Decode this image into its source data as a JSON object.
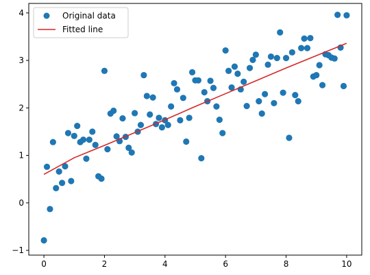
{
  "chart_data": {
    "type": "scatter",
    "xlim": [
      -0.5,
      10.5
    ],
    "ylim": [
      -1.1,
      4.2
    ],
    "x_ticks": [
      0,
      2,
      4,
      6,
      8,
      10
    ],
    "y_ticks": [
      -1,
      0,
      1,
      2,
      3,
      4
    ],
    "grid": false,
    "legend": {
      "placement": "top-left",
      "entries": [
        "Original data",
        "Fitted line"
      ]
    },
    "colors": {
      "points": "#1f77b4",
      "line": "#d62728",
      "axes": "#000000"
    },
    "series": [
      {
        "name": "Original data",
        "type": "scatter",
        "x": [
          0.0,
          0.1,
          0.2,
          0.3,
          0.4,
          0.5,
          0.6,
          0.7,
          0.8,
          0.9,
          1.0,
          1.1,
          1.2,
          1.3,
          1.4,
          1.5,
          1.6,
          1.7,
          1.8,
          1.9,
          2.0,
          2.1,
          2.2,
          2.3,
          2.4,
          2.5,
          2.6,
          2.7,
          2.8,
          2.9,
          3.0,
          3.1,
          3.2,
          3.3,
          3.4,
          3.5,
          3.6,
          3.7,
          3.8,
          3.9,
          4.0,
          4.1,
          4.2,
          4.3,
          4.4,
          4.5,
          4.6,
          4.7,
          4.8,
          4.9,
          5.0,
          5.1,
          5.2,
          5.3,
          5.4,
          5.5,
          5.6,
          5.7,
          5.8,
          5.9,
          6.0,
          6.1,
          6.2,
          6.3,
          6.4,
          6.5,
          6.6,
          6.7,
          6.8,
          6.9,
          7.0,
          7.1,
          7.2,
          7.3,
          7.4,
          7.5,
          7.6,
          7.7,
          7.8,
          7.9,
          8.0,
          8.1,
          8.2,
          8.3,
          8.4,
          8.5,
          8.6,
          8.7,
          8.8,
          8.9,
          9.0,
          9.1,
          9.2,
          9.3,
          9.4,
          9.5,
          9.6,
          9.7,
          9.8,
          9.9,
          10.0
        ],
        "y": [
          -0.79,
          0.76,
          -0.13,
          1.28,
          0.31,
          0.66,
          0.42,
          0.77,
          1.47,
          0.46,
          1.41,
          1.62,
          1.28,
          1.33,
          0.93,
          1.33,
          1.5,
          1.22,
          0.56,
          0.51,
          2.78,
          1.13,
          1.88,
          1.94,
          1.4,
          1.3,
          1.78,
          1.39,
          1.16,
          1.06,
          1.89,
          1.5,
          1.64,
          2.69,
          2.25,
          1.86,
          2.22,
          1.66,
          1.79,
          1.59,
          1.74,
          1.64,
          2.03,
          2.52,
          2.39,
          1.74,
          2.21,
          1.29,
          1.79,
          2.75,
          2.58,
          2.58,
          0.94,
          2.33,
          2.14,
          2.57,
          2.42,
          2.03,
          1.75,
          1.47,
          3.21,
          2.78,
          2.43,
          2.87,
          2.72,
          2.39,
          2.55,
          2.04,
          2.84,
          3.01,
          3.12,
          2.14,
          1.88,
          2.29,
          2.91,
          3.08,
          2.1,
          3.05,
          3.59,
          2.32,
          3.05,
          1.37,
          3.17,
          2.27,
          2.14,
          3.26,
          3.46,
          3.26,
          3.47,
          2.66,
          2.69,
          2.9,
          2.48,
          3.13,
          3.11,
          3.06,
          3.04,
          3.96,
          3.27,
          2.46,
          3.95
        ]
      },
      {
        "name": "Fitted line",
        "type": "line",
        "x": [
          0.0,
          1.0,
          2.0,
          3.0,
          4.0,
          5.0,
          6.0,
          7.0,
          8.0,
          9.0,
          10.0
        ],
        "y": [
          0.6,
          0.95,
          1.21,
          1.48,
          1.75,
          2.03,
          2.3,
          2.57,
          2.84,
          3.1,
          3.36
        ]
      }
    ]
  }
}
